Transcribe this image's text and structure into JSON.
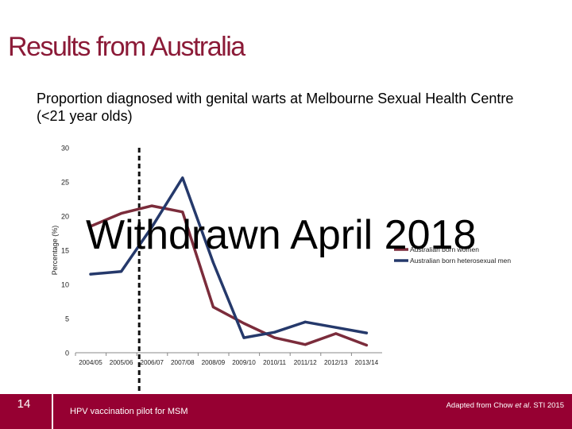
{
  "slide": {
    "title": "Results from Australia",
    "page_number": "14",
    "footer_note": "HPV vaccination pilot for MSM",
    "source_prefix": "Adapted from Chow ",
    "source_italic": "et al",
    "source_suffix": ". STI 2015",
    "stamp": "Withdrawn April 2018"
  },
  "colors": {
    "title": "#8b1a37",
    "footer": "#960032",
    "women": "#7b2c3b",
    "men": "#25396b"
  },
  "chart_data": {
    "type": "line",
    "title": "Proportion diagnosed with genital warts at Melbourne Sexual Health Centre (<21 year olds)",
    "ylabel": "Percentage (%)",
    "xlabel": "",
    "categories": [
      "2004/05",
      "2005/06",
      "2006/07",
      "2007/08",
      "2008/09",
      "2009/10",
      "2010/11",
      "2011/12",
      "2012/13",
      "2013/14"
    ],
    "ylim": [
      0,
      30
    ],
    "yticks": [
      "0",
      "5",
      "10",
      "15",
      "20",
      "25",
      "30"
    ],
    "series": [
      {
        "name": "Australian born women",
        "color": "#7b2c3b",
        "values": [
          18.5,
          20.4,
          21.5,
          20.6,
          6.7,
          4.3,
          2.2,
          1.2,
          2.8,
          1.1
        ]
      },
      {
        "name": "Australian born heterosexual men",
        "color": "#25396b",
        "values": [
          11.5,
          11.9,
          18.4,
          25.6,
          13.2,
          2.2,
          3.0,
          4.5,
          3.7,
          2.9
        ]
      }
    ],
    "annotation": {
      "type": "vertical-dashed-line",
      "position_category": "2006/07",
      "label": "HPV vaccination pilot for MSM"
    },
    "grid": false,
    "legend_position": "right"
  }
}
